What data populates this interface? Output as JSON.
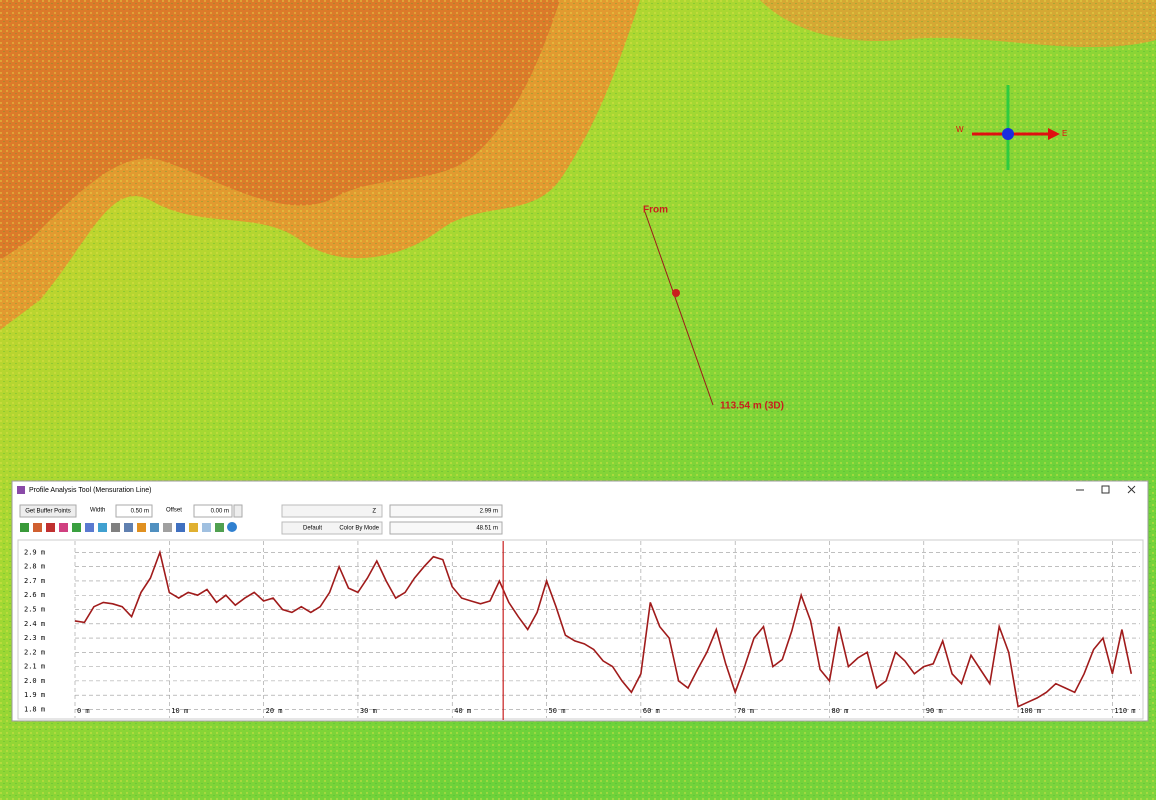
{
  "map": {
    "from_label": "From",
    "distance_label": "113.54 m (3D)",
    "compass": {
      "west": "W",
      "east": "E"
    }
  },
  "window": {
    "title": "Profile Analysis Tool (Mensuration Line)",
    "toolbar": {
      "get_buffer_points": "Get Buffer Points",
      "width_label": "Width",
      "width_value": "0.50 m",
      "offset_label": "Offset",
      "offset_value": "0.00 m",
      "z_label": "Z",
      "z_value": "2.99 m",
      "style": "Default",
      "color_mode": "Color By Mode",
      "distance_value": "48.51 m"
    }
  },
  "chart_data": {
    "type": "line",
    "color": "#a01b1b",
    "grid": true,
    "cursor_x": 45.4,
    "xlim": [
      0,
      112.5
    ],
    "ylim": [
      1.74,
      2.98
    ],
    "xticks": [
      {
        "value": 0,
        "label": "0 m"
      },
      {
        "value": 10,
        "label": "10 m"
      },
      {
        "value": 20,
        "label": "20 m"
      },
      {
        "value": 30,
        "label": "30 m"
      },
      {
        "value": 40,
        "label": "40 m"
      },
      {
        "value": 50,
        "label": "50 m"
      },
      {
        "value": 60,
        "label": "60 m"
      },
      {
        "value": 70,
        "label": "70 m"
      },
      {
        "value": 80,
        "label": "80 m"
      },
      {
        "value": 90,
        "label": "90 m"
      },
      {
        "value": 100,
        "label": "100 m"
      },
      {
        "value": 110,
        "label": "110 m"
      }
    ],
    "yticks": [
      {
        "value": 1.8,
        "label": "1.8 m"
      },
      {
        "value": 1.9,
        "label": "1.9 m"
      },
      {
        "value": 2.0,
        "label": "2.0 m"
      },
      {
        "value": 2.1,
        "label": "2.1 m"
      },
      {
        "value": 2.2,
        "label": "2.2 m"
      },
      {
        "value": 2.3,
        "label": "2.3 m"
      },
      {
        "value": 2.4,
        "label": "2.4 m"
      },
      {
        "value": 2.5,
        "label": "2.5 m"
      },
      {
        "value": 2.6,
        "label": "2.6 m"
      },
      {
        "value": 2.7,
        "label": "2.7 m"
      },
      {
        "value": 2.8,
        "label": "2.8 m"
      },
      {
        "value": 2.9,
        "label": "2.9 m"
      }
    ],
    "x": [
      0,
      1,
      2,
      3,
      4,
      5,
      6,
      7,
      8,
      9,
      10,
      11,
      12,
      13,
      14,
      15,
      16,
      17,
      18,
      19,
      20,
      21,
      22,
      23,
      24,
      25,
      26,
      27,
      28,
      29,
      30,
      31,
      32,
      33,
      34,
      35,
      36,
      37,
      38,
      39,
      40,
      41,
      42,
      43,
      44,
      45,
      46,
      47,
      48,
      49,
      50,
      51,
      52,
      53,
      54,
      55,
      56,
      57,
      58,
      59,
      60,
      61,
      62,
      63,
      64,
      65,
      66,
      67,
      68,
      69,
      70,
      71,
      72,
      73,
      74,
      75,
      76,
      77,
      78,
      79,
      80,
      81,
      82,
      83,
      84,
      85,
      86,
      87,
      88,
      89,
      90,
      91,
      92,
      93,
      94,
      95,
      96,
      97,
      98,
      99,
      100,
      101,
      102,
      103,
      104,
      105,
      106,
      107,
      108,
      109,
      110,
      111,
      112
    ],
    "values": [
      2.42,
      2.41,
      2.52,
      2.55,
      2.54,
      2.52,
      2.45,
      2.62,
      2.72,
      2.9,
      2.62,
      2.58,
      2.62,
      2.6,
      2.64,
      2.55,
      2.6,
      2.53,
      2.58,
      2.62,
      2.56,
      2.58,
      2.5,
      2.48,
      2.52,
      2.48,
      2.52,
      2.62,
      2.8,
      2.65,
      2.62,
      2.72,
      2.84,
      2.7,
      2.58,
      2.62,
      2.72,
      2.8,
      2.87,
      2.85,
      2.66,
      2.58,
      2.56,
      2.54,
      2.56,
      2.7,
      2.55,
      2.45,
      2.36,
      2.48,
      2.7,
      2.52,
      2.32,
      2.28,
      2.26,
      2.22,
      2.14,
      2.1,
      2.0,
      1.92,
      2.05,
      2.55,
      2.38,
      2.3,
      2.0,
      1.95,
      2.08,
      2.2,
      2.36,
      2.12,
      1.92,
      2.1,
      2.3,
      2.38,
      2.1,
      2.15,
      2.35,
      2.6,
      2.42,
      2.08,
      2.0,
      2.38,
      2.1,
      2.16,
      2.2,
      1.95,
      2.0,
      2.2,
      2.14,
      2.05,
      2.1,
      2.12,
      2.28,
      2.05,
      1.98,
      2.18,
      2.08,
      1.98,
      2.38,
      2.2,
      1.82,
      1.85,
      1.88,
      1.92,
      1.98,
      1.95,
      1.92,
      2.05,
      2.22,
      2.3,
      2.05,
      2.36,
      2.05
    ]
  }
}
